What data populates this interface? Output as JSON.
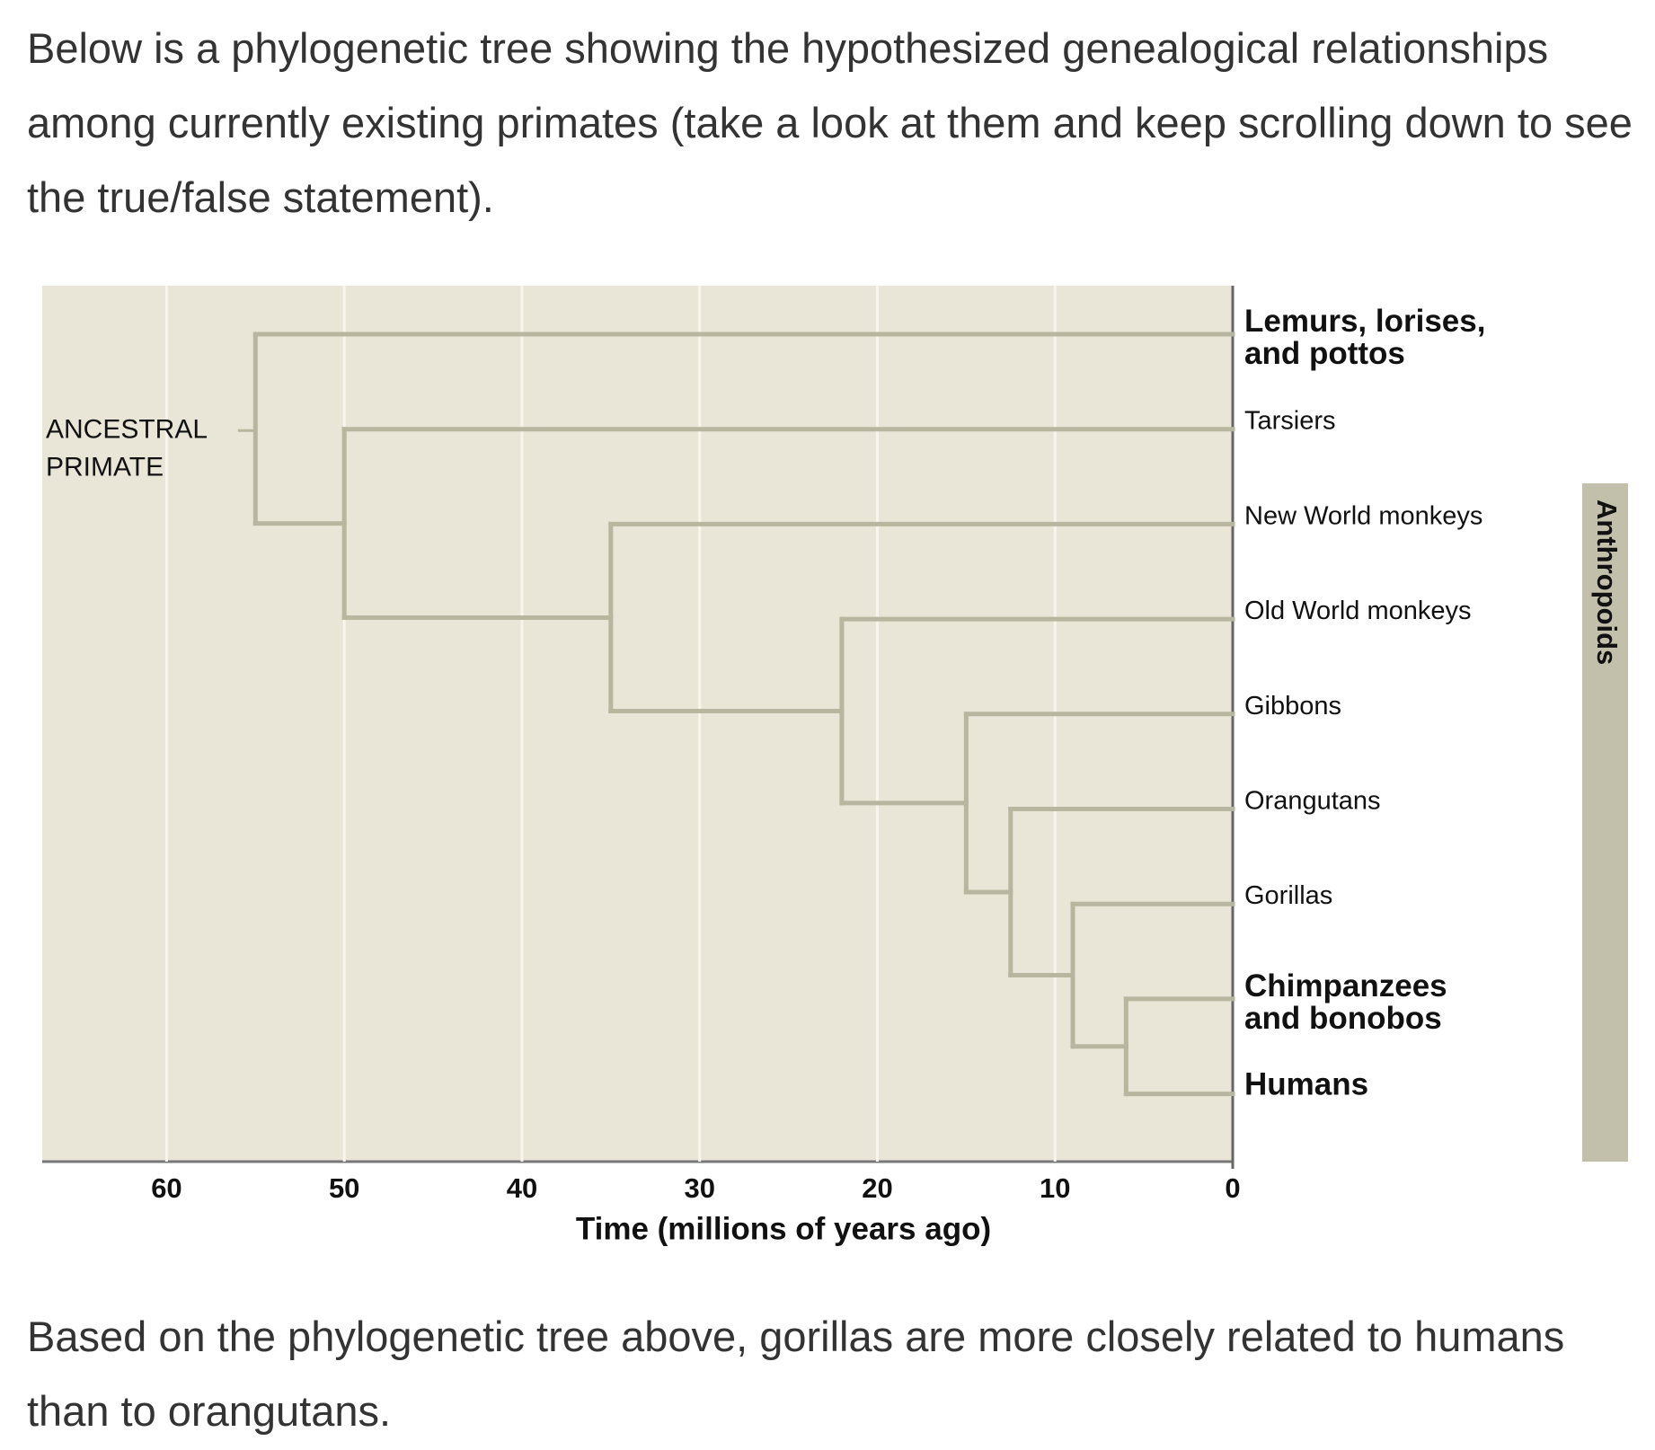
{
  "intro": "Below is a phylogenetic tree showing the hypothesized genealogical relationships among currently existing primates (take a look at them and keep scrolling down to see the true/false statement).",
  "tree": {
    "xlim": [
      67,
      0
    ],
    "xticks": [
      60,
      50,
      40,
      30,
      20,
      10,
      0
    ],
    "x_label": "Time (millions of years ago)",
    "root_label": [
      "ANCESTRAL",
      "PRIMATE"
    ],
    "clade_label": "Anthropoids",
    "root": {
      "time": 55,
      "children": [
        {
          "name": [
            "Lemurs, lorises,",
            "and pottos"
          ]
        },
        {
          "time": 50,
          "children": [
            {
              "name": [
                "Tarsiers"
              ]
            },
            {
              "time": 35,
              "children": [
                {
                  "name": [
                    "New World monkeys"
                  ]
                },
                {
                  "time": 22,
                  "children": [
                    {
                      "name": [
                        "Old World monkeys"
                      ]
                    },
                    {
                      "time": 15,
                      "children": [
                        {
                          "name": [
                            "Gibbons"
                          ]
                        },
                        {
                          "time": 12.5,
                          "children": [
                            {
                              "name": [
                                "Orangutans"
                              ]
                            },
                            {
                              "time": 9,
                              "children": [
                                {
                                  "name": [
                                    "Gorillas"
                                  ]
                                },
                                {
                                  "time": 6,
                                  "children": [
                                    {
                                      "name": [
                                        "Chimpanzees",
                                        "and bonobos"
                                      ]
                                    },
                                    {
                                      "name": [
                                        "Humans"
                                      ]
                                    }
                                  ]
                                }
                              ]
                            }
                          ]
                        }
                      ]
                    }
                  ]
                }
              ]
            }
          ]
        }
      ]
    }
  },
  "question": "Based on the phylogenetic tree above, gorillas are more closely related to humans than to orangutans."
}
